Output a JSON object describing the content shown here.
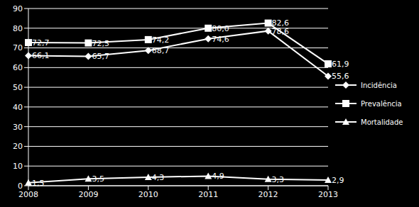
{
  "chart_data": {
    "type": "line",
    "categories": [
      "2008",
      "2009",
      "2010",
      "2011",
      "2012",
      "2013"
    ],
    "series": [
      {
        "name": "Incidência",
        "color": "#ffffff",
        "marker": "diamond",
        "values": [
          66.1,
          65.7,
          68.7,
          74.6,
          78.6,
          55.6
        ],
        "value_labels": [
          "66,1",
          "65,7",
          "68,7",
          "74,6",
          "78,6",
          "55,6"
        ]
      },
      {
        "name": "Prevalência",
        "color": "#ffffff",
        "marker": "square",
        "values": [
          72.7,
          72.5,
          74.2,
          80.0,
          82.6,
          61.9
        ],
        "value_labels": [
          "72,7",
          "72,5",
          "74,2",
          "80,0",
          "82,6",
          "61,9"
        ]
      },
      {
        "name": "Mortalidade",
        "color": "#ffffff",
        "marker": "triangle",
        "values": [
          1.5,
          3.5,
          4.3,
          4.9,
          3.3,
          2.9
        ],
        "value_labels": [
          "1,5",
          "3,5",
          "4,3",
          "4,9",
          "3,3",
          "2,9"
        ]
      }
    ],
    "ylim": [
      0,
      90
    ],
    "yticks": [
      0,
      10,
      20,
      30,
      40,
      50,
      60,
      70,
      80,
      90
    ],
    "grid": true,
    "legend": "right",
    "data_labels": true
  }
}
